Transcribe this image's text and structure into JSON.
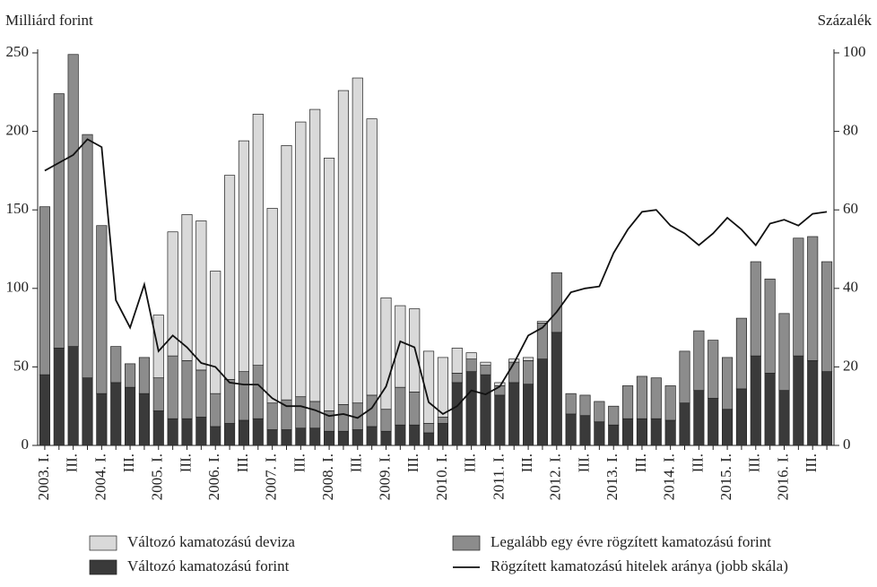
{
  "chart_data": {
    "type": "bar",
    "stacked": true,
    "y_label": "Milliárd forint",
    "y2_label": "Százalék",
    "categories": [
      "2003. I.",
      null,
      "III.",
      null,
      "2004. I.",
      null,
      "III.",
      null,
      "2005. I.",
      null,
      "III.",
      null,
      "2006. I.",
      null,
      "III.",
      null,
      "2007. I.",
      null,
      "III.",
      null,
      "2008. I.",
      null,
      "III.",
      null,
      "2009. I.",
      null,
      "III.",
      null,
      "2010. I.",
      null,
      "III.",
      null,
      "2011. I.",
      null,
      "III.",
      null,
      "2012. I.",
      null,
      "III.",
      null,
      "2013. I.",
      null,
      "III.",
      null,
      "2014. I.",
      null,
      "III.",
      null,
      "2015. I.",
      null,
      "III.",
      null,
      "2016. I.",
      null,
      "III.",
      null
    ],
    "series": [
      {
        "name": "Változó kamatozású forint",
        "color": "#3a3a3a",
        "values": [
          45,
          62,
          63,
          43,
          33,
          40,
          37,
          33,
          22,
          17,
          17,
          18,
          12,
          14,
          16,
          17,
          10,
          10,
          11,
          11,
          9,
          9,
          10,
          12,
          9,
          13,
          13,
          8,
          14,
          40,
          47,
          45,
          32,
          40,
          39,
          55,
          72,
          20,
          19,
          15,
          13,
          17,
          17,
          17,
          16,
          27,
          35,
          30,
          23,
          36,
          57,
          46,
          35,
          57,
          54,
          47
        ]
      },
      {
        "name": "Legalább egy évre rögzített kamatozású forint",
        "color": "#8c8c8c",
        "values": [
          107,
          162,
          186,
          155,
          107,
          23,
          15,
          23,
          21,
          40,
          37,
          30,
          21,
          28,
          31,
          34,
          17,
          19,
          20,
          17,
          13,
          17,
          17,
          20,
          14,
          24,
          21,
          6,
          4,
          6,
          8,
          6,
          6,
          13,
          15,
          23,
          38,
          13,
          13,
          13,
          12,
          21,
          27,
          26,
          22,
          33,
          38,
          37,
          33,
          45,
          60,
          60,
          49,
          75,
          79,
          70
        ]
      },
      {
        "name": "Változó kamatozású deviza",
        "color": "#d9d9d9",
        "values": [
          0,
          0,
          0,
          0,
          0,
          0,
          0,
          0,
          40,
          79,
          93,
          95,
          78,
          130,
          147,
          160,
          124,
          162,
          175,
          186,
          161,
          200,
          207,
          176,
          71,
          52,
          53,
          46,
          38,
          16,
          4,
          2,
          2,
          2,
          2,
          1,
          0,
          0,
          0,
          0,
          0,
          0,
          0,
          0,
          0,
          0,
          0,
          0,
          0,
          0,
          0,
          0,
          0,
          0,
          0,
          0
        ]
      },
      {
        "name": "Rögzített kamatozású hitelek aránya (jobb skála)",
        "color": "#111111",
        "type": "line",
        "axis": "y2",
        "values": [
          70,
          72,
          74,
          78,
          76,
          37,
          30,
          41,
          24,
          28,
          25,
          21,
          20,
          16,
          15.5,
          15.5,
          12,
          10,
          10,
          9,
          7.5,
          8,
          7,
          9.5,
          15,
          26.5,
          25,
          11,
          8,
          10,
          14,
          13,
          15,
          21,
          28,
          30,
          34,
          39,
          40,
          40.5,
          49,
          55,
          59.5,
          60,
          56,
          54,
          51,
          54,
          58,
          55,
          51,
          56.5,
          57.5,
          56,
          59,
          59.5
        ]
      }
    ],
    "ylim": [
      0,
      250
    ],
    "yticks": [
      0,
      50,
      100,
      150,
      200,
      250
    ],
    "y2lim": [
      0,
      100
    ],
    "y2ticks": [
      0,
      20,
      40,
      60,
      80,
      100
    ]
  }
}
